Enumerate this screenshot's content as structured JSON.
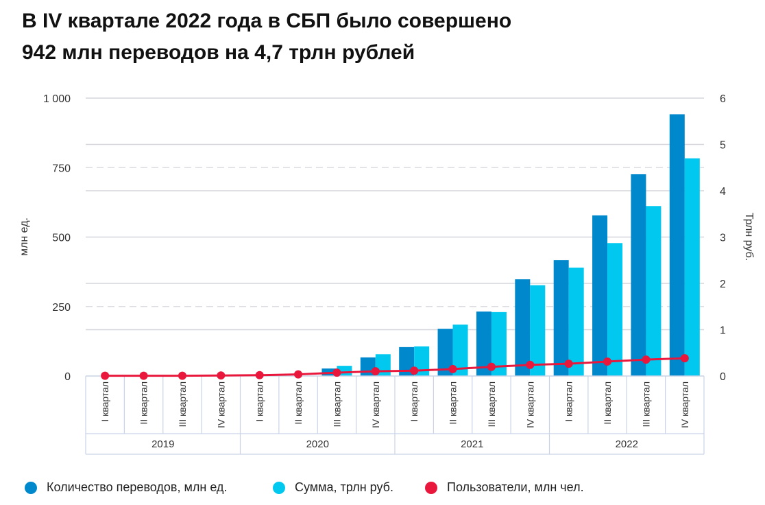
{
  "title_line1": "В IV квартале 2022 года в СБП было совершено",
  "title_line2": "942 млн переводов на 4,7 трлн рублей",
  "chart_data": {
    "type": "bar",
    "title": "В IV квартале 2022 года в СБП было совершено 942 млн переводов на 4,7 трлн рублей",
    "categories": [
      "I квартал",
      "II квартал",
      "III квартал",
      "IV квартал",
      "I квартал",
      "II квартал",
      "III квартал",
      "IV квартал",
      "I квартал",
      "II квартал",
      "III квартал",
      "IV квартал",
      "I квартал",
      "II квартал",
      "III квартал",
      "IV квартал"
    ],
    "years": [
      "2019",
      "2020",
      "2021",
      "2022"
    ],
    "ylabel_left": "млн ед.",
    "ylabel_right": "Трлн руб.",
    "ylim_left": [
      0,
      1000
    ],
    "ylim_right": [
      0,
      6
    ],
    "yticks_left": [
      "0",
      "250",
      "500",
      "750",
      "1 000"
    ],
    "yticks_right": [
      "0",
      "1",
      "2",
      "3",
      "4",
      "5",
      "6"
    ],
    "grid": true,
    "legend_position": "bottom",
    "series": [
      {
        "name": "Количество переводов, млн ед.",
        "type": "bar",
        "axis": "left",
        "color": "#0088cc",
        "values": [
          0,
          0,
          0,
          0,
          0,
          0,
          27,
          67,
          104,
          170,
          232,
          348,
          417,
          578,
          726,
          942
        ]
      },
      {
        "name": "Сумма, трлн руб.",
        "type": "bar",
        "axis": "right",
        "color": "#00c8ee",
        "values": [
          0,
          0,
          0,
          0,
          0,
          0,
          0.22,
          0.47,
          0.64,
          1.11,
          1.38,
          1.96,
          2.34,
          2.87,
          3.67,
          4.7
        ]
      },
      {
        "name": "Пользователи, млн чел.",
        "type": "line",
        "axis": "left",
        "color": "#e8173b",
        "values": [
          1,
          1,
          1,
          2,
          3,
          6,
          12,
          17,
          19,
          25,
          33,
          40,
          44,
          52,
          59,
          64
        ]
      }
    ]
  }
}
